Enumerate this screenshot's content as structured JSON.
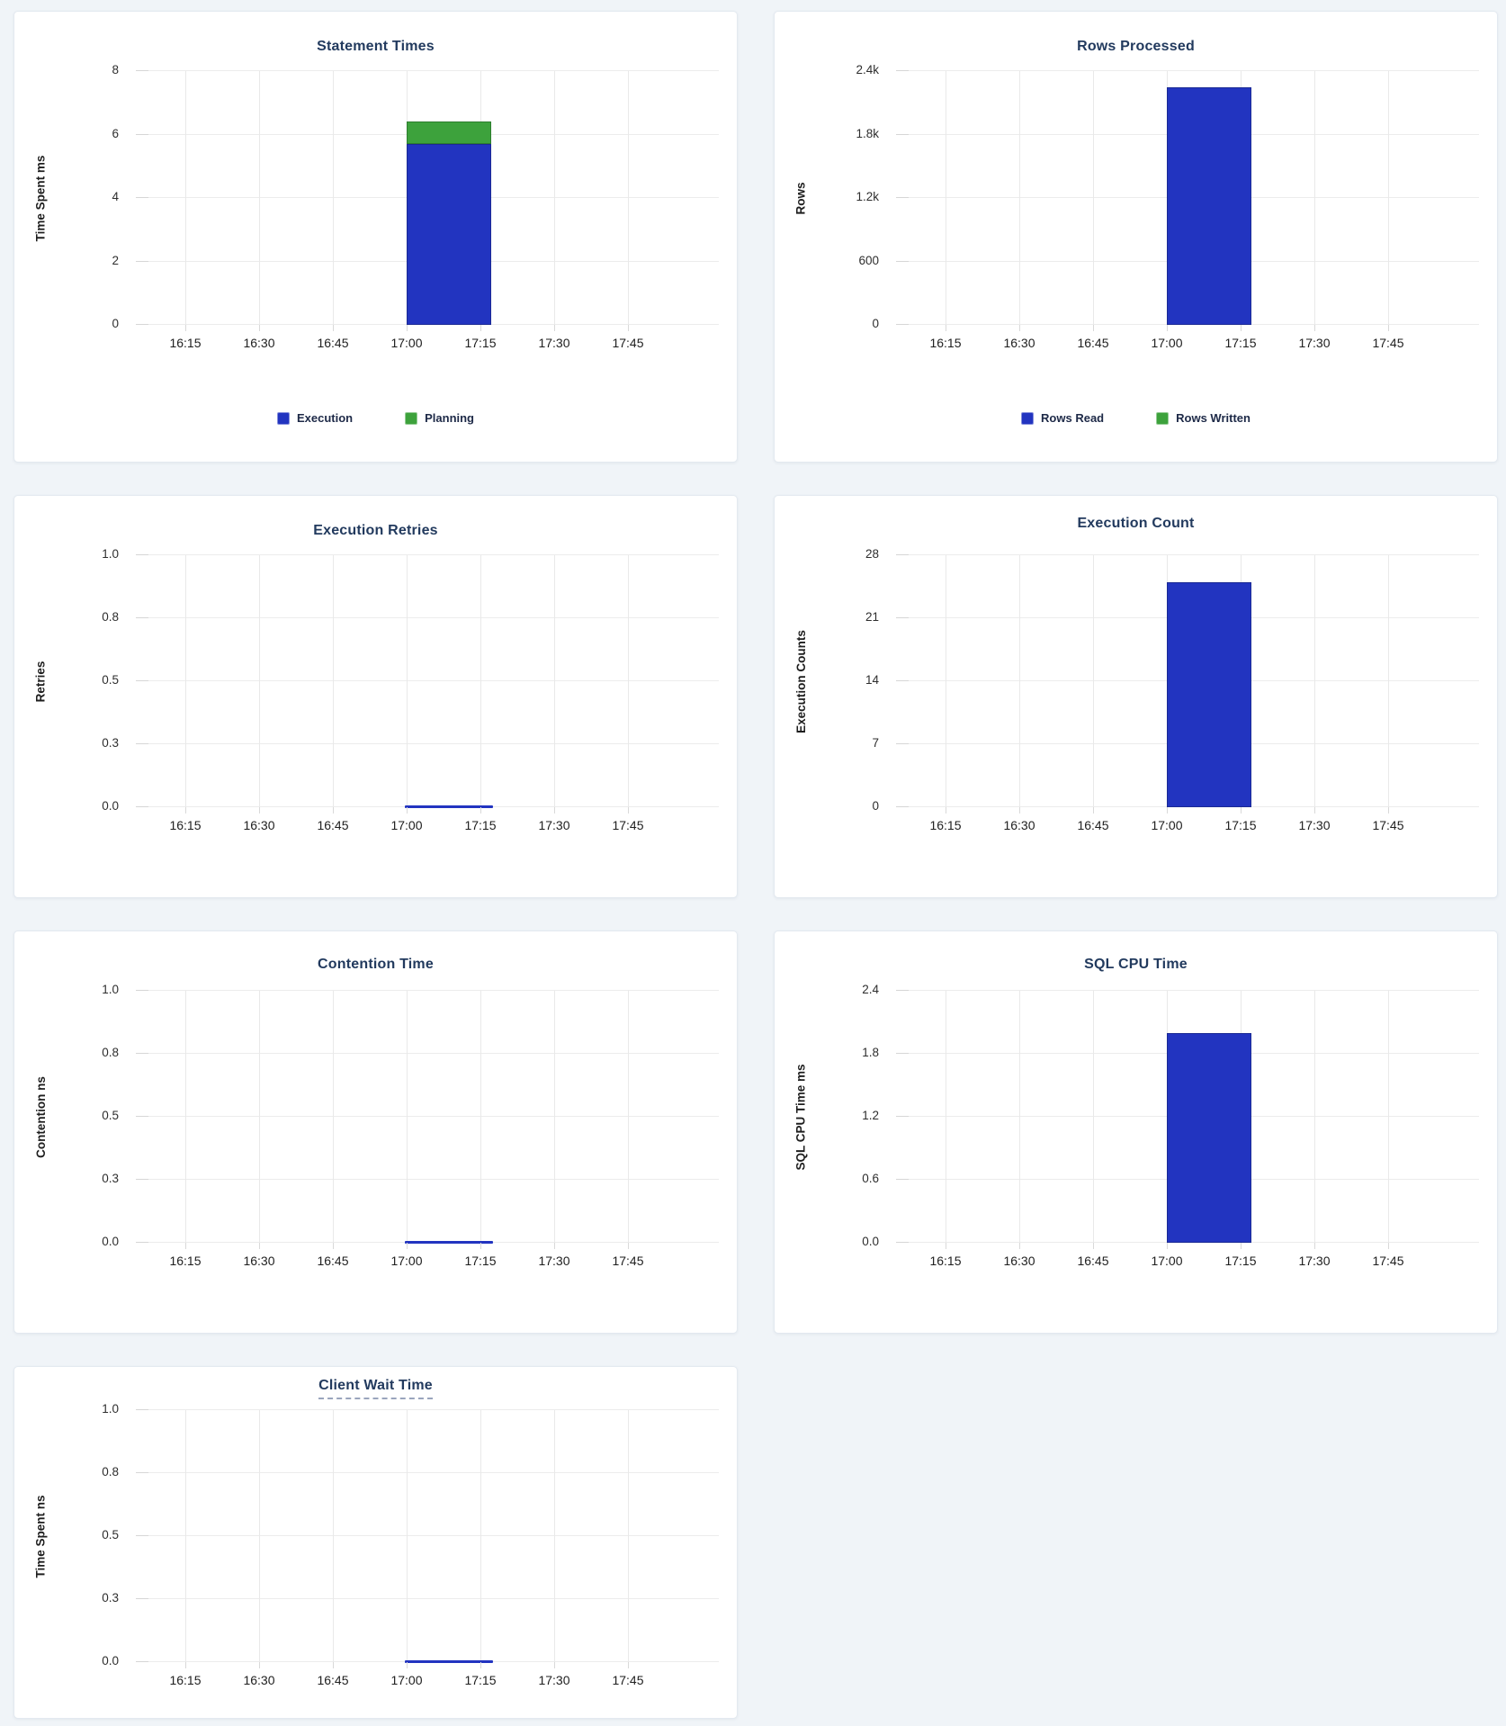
{
  "colors": {
    "series_blue": "#2234c0",
    "series_green": "#3da23c",
    "title_navy": "#223a5e",
    "page_background": "#f0f4f8"
  },
  "chart_data": [
    {
      "type": "bar",
      "title": "Statement Times",
      "ylabel": "Time Spent ms",
      "ylim": [
        0,
        8
      ],
      "ytick_labels": [
        "0",
        "2",
        "4",
        "6",
        "8"
      ],
      "xtick_labels": [
        "16:15",
        "16:30",
        "16:45",
        "17:00",
        "17:15",
        "17:30",
        "17:45"
      ],
      "grid": true,
      "stacked": true,
      "bar_span": {
        "x_start": "17:00",
        "x_end": "17:15"
      },
      "bars": [
        {
          "label": "Execution",
          "color": "series_blue",
          "value": 5.7
        },
        {
          "label": "Planning",
          "color": "series_green",
          "value": 0.7
        }
      ],
      "legend_position": "bottom",
      "legend": [
        {
          "label": "Execution",
          "color": "series_blue"
        },
        {
          "label": "Planning",
          "color": "series_green"
        }
      ]
    },
    {
      "type": "bar",
      "title": "Rows Processed",
      "ylabel": "Rows",
      "ylim": [
        0,
        2400
      ],
      "ytick_labels": [
        "0",
        "600",
        "1.2k",
        "1.8k",
        "2.4k"
      ],
      "xtick_labels": [
        "16:15",
        "16:30",
        "16:45",
        "17:00",
        "17:15",
        "17:30",
        "17:45"
      ],
      "grid": true,
      "stacked": true,
      "bar_span": {
        "x_start": "17:00",
        "x_end": "17:15"
      },
      "bars": [
        {
          "label": "Rows Read",
          "color": "series_blue",
          "value": 2250
        },
        {
          "label": "Rows Written",
          "color": "series_green",
          "value": 0
        }
      ],
      "legend_position": "bottom",
      "legend": [
        {
          "label": "Rows Read",
          "color": "series_blue"
        },
        {
          "label": "Rows Written",
          "color": "series_green"
        }
      ]
    },
    {
      "type": "line",
      "title": "Execution Retries",
      "ylabel": "Retries",
      "ylim": [
        0,
        1
      ],
      "ytick_labels": [
        "0.0",
        "0.3",
        "0.5",
        "0.8",
        "1.0"
      ],
      "xtick_labels": [
        "16:15",
        "16:30",
        "16:45",
        "17:00",
        "17:15",
        "17:30",
        "17:45"
      ],
      "grid": true,
      "line": {
        "y": 0,
        "x_start": "17:00",
        "x_end": "17:15",
        "color": "series_blue"
      }
    },
    {
      "type": "bar",
      "title": "Execution Count",
      "ylabel": "Execution Counts",
      "ylim": [
        0,
        28
      ],
      "ytick_labels": [
        "0",
        "7",
        "14",
        "21",
        "28"
      ],
      "xtick_labels": [
        "16:15",
        "16:30",
        "16:45",
        "17:00",
        "17:15",
        "17:30",
        "17:45"
      ],
      "grid": true,
      "bar_span": {
        "x_start": "17:00",
        "x_end": "17:15"
      },
      "bars": [
        {
          "color": "series_blue",
          "value": 25
        }
      ]
    },
    {
      "type": "line",
      "title": "Contention Time",
      "ylabel": "Contention ns",
      "ylim": [
        0,
        1
      ],
      "ytick_labels": [
        "0.0",
        "0.3",
        "0.5",
        "0.8",
        "1.0"
      ],
      "xtick_labels": [
        "16:15",
        "16:30",
        "16:45",
        "17:00",
        "17:15",
        "17:30",
        "17:45"
      ],
      "grid": true,
      "line": {
        "y": 0,
        "x_start": "17:00",
        "x_end": "17:15",
        "color": "series_blue"
      }
    },
    {
      "type": "bar",
      "title": "SQL CPU Time",
      "ylabel": "SQL CPU Time ms",
      "ylim": [
        0,
        2.4
      ],
      "ytick_labels": [
        "0.0",
        "0.6",
        "1.2",
        "1.8",
        "2.4"
      ],
      "xtick_labels": [
        "16:15",
        "16:30",
        "16:45",
        "17:00",
        "17:15",
        "17:30",
        "17:45"
      ],
      "grid": true,
      "bar_span": {
        "x_start": "17:00",
        "x_end": "17:15"
      },
      "bars": [
        {
          "color": "series_blue",
          "value": 2
        }
      ]
    },
    {
      "type": "line",
      "title": "Client Wait Time",
      "title_underline": "dashed",
      "ylabel": "Time Spent ns",
      "ylim": [
        0,
        1
      ],
      "ytick_labels": [
        "0.0",
        "0.3",
        "0.5",
        "0.8",
        "1.0"
      ],
      "xtick_labels": [
        "16:15",
        "16:30",
        "16:45",
        "17:00",
        "17:15",
        "17:30",
        "17:45"
      ],
      "grid": true,
      "line": {
        "y": 0,
        "x_start": "17:00",
        "x_end": "17:15",
        "color": "series_blue"
      }
    }
  ]
}
